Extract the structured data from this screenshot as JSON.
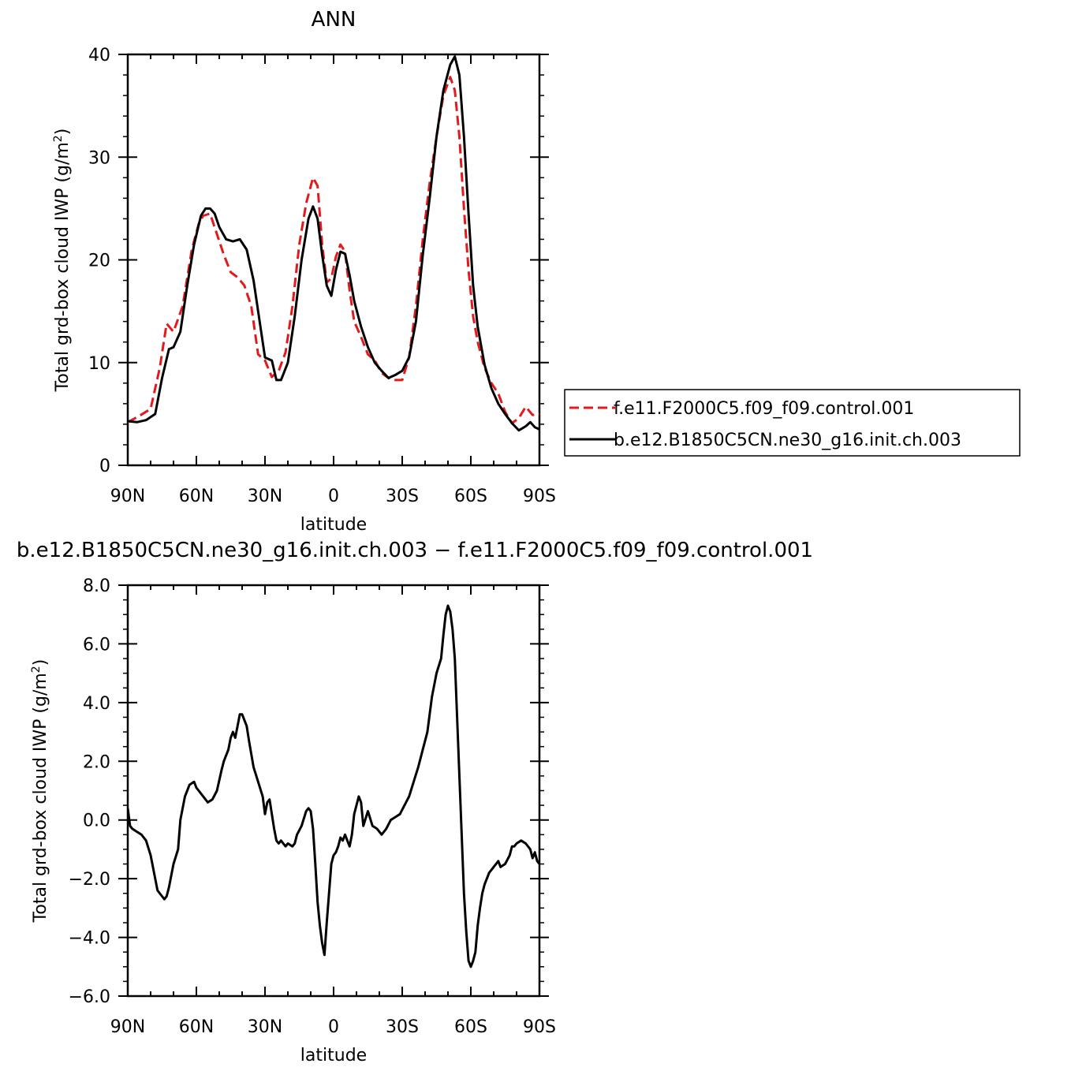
{
  "chart_data": [
    {
      "type": "line",
      "title": "ANN",
      "xlabel": "latitude",
      "ylabel": "Total grd-box cloud IWP (g/m²)",
      "ylabel_main": "Total grd-box cloud IWP (g/m",
      "ylabel_sup": "2",
      "ylabel_end": ")",
      "xlim": [
        90,
        -90
      ],
      "ylim": [
        0,
        40
      ],
      "x_ticks": [
        90,
        60,
        30,
        0,
        -30,
        -60,
        -90
      ],
      "x_tick_labels": [
        "90N",
        "60N",
        "30N",
        "0",
        "30S",
        "60S",
        "90S"
      ],
      "y_ticks": [
        0,
        10,
        20,
        30,
        40
      ],
      "y_tick_labels": [
        "0",
        "10",
        "20",
        "30",
        "40"
      ],
      "legend_position": "right",
      "series": [
        {
          "name": "f.e11.F2000C5.f09_f09.control.001",
          "color": "#e31a1c",
          "dash": "dashed",
          "x": [
            90,
            85,
            80,
            76,
            73,
            70,
            66,
            62,
            59,
            57,
            54,
            51,
            48,
            45,
            42,
            39,
            36,
            33,
            30,
            27,
            24,
            21,
            18,
            15,
            12,
            9,
            7,
            5,
            3,
            1,
            -1,
            -3,
            -5,
            -7,
            -9,
            -12,
            -15,
            -18,
            -21,
            -24,
            -27,
            -30,
            -33,
            -36,
            -39,
            -42,
            -45,
            -48,
            -51,
            -53,
            -55,
            -57,
            -59,
            -61,
            -63,
            -66,
            -69,
            -72,
            -75,
            -78,
            -81,
            -84,
            -87,
            -90
          ],
          "y": [
            4.2,
            4.8,
            5.5,
            9.5,
            13.8,
            13.0,
            15.5,
            21.0,
            23.5,
            24.3,
            24.5,
            22.5,
            20.5,
            18.8,
            18.3,
            17.5,
            15.5,
            10.8,
            10.2,
            8.6,
            9.2,
            11.0,
            15.5,
            21.5,
            25.5,
            28.0,
            27.2,
            21.5,
            17.8,
            18.2,
            20.3,
            21.5,
            20.8,
            17.0,
            14.0,
            12.5,
            10.8,
            10.2,
            9.0,
            8.5,
            8.3,
            8.3,
            10.5,
            15.5,
            22.0,
            27.5,
            32.0,
            36.0,
            37.8,
            36.5,
            32.0,
            25.0,
            19.0,
            14.5,
            12.0,
            9.5,
            8.0,
            7.0,
            5.2,
            4.1,
            4.6,
            5.7,
            4.9,
            5.0
          ]
        },
        {
          "name": "b.e12.B1850C5CN.ne30_g16.init.ch.003",
          "color": "#000000",
          "dash": "solid",
          "x": [
            90,
            86,
            82,
            78,
            75,
            72,
            70,
            67,
            64,
            61,
            58,
            56,
            54,
            52,
            50,
            47,
            44,
            41,
            38,
            35,
            32,
            30,
            27,
            25,
            23,
            20,
            17,
            14,
            11,
            9,
            7,
            5,
            3,
            1,
            -1,
            -3,
            -5,
            -7,
            -9,
            -12,
            -15,
            -18,
            -21,
            -24,
            -27,
            -30,
            -33,
            -36,
            -39,
            -42,
            -45,
            -48,
            -51,
            -53,
            -55,
            -57,
            -59,
            -61,
            -63,
            -66,
            -69,
            -72,
            -75,
            -78,
            -81,
            -84,
            -86,
            -88,
            -90
          ],
          "y": [
            4.3,
            4.2,
            4.4,
            5.0,
            8.5,
            11.3,
            11.5,
            13.0,
            17.5,
            21.5,
            24.3,
            25.0,
            25.0,
            24.5,
            23.2,
            22.0,
            21.8,
            22.0,
            21.0,
            18.0,
            13.5,
            10.5,
            10.2,
            8.3,
            8.3,
            10.0,
            14.5,
            20.0,
            24.0,
            25.2,
            24.0,
            20.5,
            17.5,
            16.5,
            19.0,
            20.8,
            20.6,
            18.5,
            16.0,
            13.5,
            11.5,
            10.0,
            9.2,
            8.5,
            8.8,
            9.2,
            10.5,
            14.0,
            20.5,
            26.0,
            32.0,
            36.5,
            39.0,
            39.8,
            38.0,
            32.0,
            24.5,
            17.5,
            13.5,
            9.8,
            7.5,
            6.0,
            5.0,
            4.1,
            3.4,
            3.8,
            4.2,
            3.7,
            3.5
          ]
        }
      ]
    },
    {
      "type": "line",
      "title": "b.e12.B1850C5CN.ne30_g16.init.ch.003  −  f.e11.F2000C5.f09_f09.control.001",
      "xlabel": "latitude",
      "ylabel": "Total grd-box cloud IWP (g/m²)",
      "ylabel_main": "Total grd-box cloud IWP (g/m",
      "ylabel_sup": "2",
      "ylabel_end": ")",
      "xlim": [
        90,
        -90
      ],
      "ylim": [
        -6.0,
        8.0
      ],
      "x_ticks": [
        90,
        60,
        30,
        0,
        -30,
        -60,
        -90
      ],
      "x_tick_labels": [
        "90N",
        "60N",
        "30N",
        "0",
        "30S",
        "60S",
        "90S"
      ],
      "y_ticks": [
        -6.0,
        -4.0,
        -2.0,
        0.0,
        2.0,
        4.0,
        6.0,
        8.0
      ],
      "y_tick_labels": [
        "−6.0",
        "−4.0",
        "−2.0",
        "0.0",
        "2.0",
        "4.0",
        "6.0",
        "8.0"
      ],
      "series": [
        {
          "color": "#000000",
          "dash": "solid",
          "x": [
            90,
            89,
            88,
            86,
            84,
            82,
            80,
            78,
            77,
            75,
            74,
            73,
            72,
            70,
            68,
            67,
            66,
            65,
            63,
            61,
            60,
            59,
            57,
            55,
            53,
            51,
            49,
            48,
            47,
            46,
            45,
            44,
            43,
            42,
            41,
            40,
            39,
            38,
            37,
            35,
            33,
            31,
            30,
            29,
            28,
            27,
            26,
            25,
            24,
            23,
            22,
            21,
            20,
            18,
            17,
            16,
            14,
            12,
            11,
            10,
            9,
            8,
            7,
            6,
            5,
            4,
            3,
            2,
            1,
            0,
            -1,
            -2,
            -3,
            -4,
            -5,
            -6,
            -7,
            -8,
            -9,
            -10,
            -11,
            -12,
            -13,
            -15,
            -17,
            -19,
            -21,
            -23,
            -25,
            -27,
            -29,
            -31,
            -33,
            -35,
            -37,
            -39,
            -41,
            -43,
            -45,
            -47,
            -48,
            -49,
            -50,
            -51,
            -52,
            -53,
            -54,
            -55,
            -56,
            -57,
            -58,
            -59,
            -60,
            -61,
            -62,
            -63,
            -64,
            -65,
            -66,
            -68,
            -70,
            -72,
            -73,
            -75,
            -77,
            -78,
            -79,
            -80,
            -82,
            -84,
            -86,
            -87,
            -88,
            -89,
            -90
          ],
          "y": [
            0.4,
            -0.2,
            -0.3,
            -0.4,
            -0.5,
            -0.7,
            -1.2,
            -2.0,
            -2.4,
            -2.6,
            -2.7,
            -2.6,
            -2.3,
            -1.5,
            -1.0,
            0.0,
            0.4,
            0.8,
            1.2,
            1.3,
            1.1,
            1.0,
            0.8,
            0.6,
            0.7,
            1.0,
            1.7,
            2.0,
            2.2,
            2.4,
            2.8,
            3.0,
            2.8,
            3.2,
            3.6,
            3.6,
            3.4,
            3.2,
            2.7,
            1.8,
            1.3,
            0.8,
            0.2,
            0.6,
            0.7,
            0.2,
            -0.3,
            -0.7,
            -0.8,
            -0.7,
            -0.8,
            -0.9,
            -0.8,
            -0.9,
            -0.8,
            -0.5,
            -0.2,
            0.3,
            0.4,
            0.3,
            -0.3,
            -1.5,
            -2.8,
            -3.6,
            -4.2,
            -4.6,
            -3.5,
            -2.5,
            -1.5,
            -1.2,
            -1.1,
            -0.9,
            -0.6,
            -0.7,
            -0.5,
            -0.7,
            -0.9,
            -0.5,
            0.2,
            0.5,
            0.8,
            0.6,
            -0.2,
            0.3,
            -0.2,
            -0.3,
            -0.5,
            -0.3,
            0.0,
            0.1,
            0.2,
            0.5,
            0.8,
            1.3,
            1.8,
            2.4,
            3.0,
            4.2,
            5.0,
            5.5,
            6.3,
            7.0,
            7.3,
            7.1,
            6.5,
            5.5,
            3.5,
            1.5,
            -0.5,
            -2.5,
            -3.8,
            -4.8,
            -5.0,
            -4.8,
            -4.5,
            -3.6,
            -3.0,
            -2.5,
            -2.2,
            -1.8,
            -1.6,
            -1.4,
            -1.6,
            -1.5,
            -1.2,
            -0.9,
            -0.9,
            -0.8,
            -0.7,
            -0.8,
            -1.0,
            -1.3,
            -1.1,
            -1.4,
            -1.5
          ]
        }
      ]
    }
  ]
}
